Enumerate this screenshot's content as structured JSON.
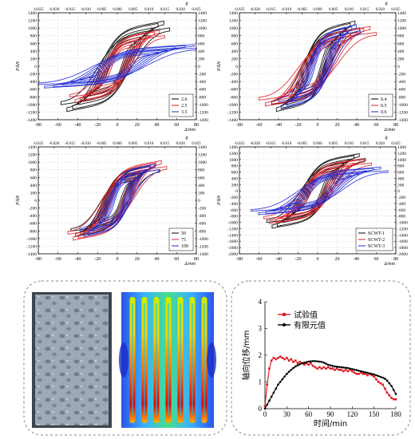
{
  "chart_data": [
    {
      "type": "line",
      "panel": "top-left",
      "xlabel": "Δ/mm",
      "ylabel": "P/kN",
      "top_axis_label": "θ",
      "xlim": [
        -80,
        80
      ],
      "ylim": [
        -1400,
        1400
      ],
      "xticks": [
        "-80",
        "-60",
        "-40",
        "-20",
        "0",
        "20",
        "40",
        "60",
        "80"
      ],
      "yticks": [
        "1400",
        "1200",
        "1000",
        "800",
        "600",
        "400",
        "200",
        "0",
        "-200",
        "-400",
        "-600",
        "-800",
        "-1000",
        "-1200",
        "-1400"
      ],
      "top_ticks": [
        "-0.025",
        "-0.020",
        "-0.015",
        "-0.010",
        "-0.005",
        "0.000",
        "0.005",
        "0.010",
        "0.015",
        "0.020",
        "0.025"
      ],
      "legend_position": "bottom-right",
      "grid": true,
      "series": [
        {
          "name": "2.0",
          "color": "#000000",
          "peak_load": 1250,
          "max_disp": 55
        },
        {
          "name": "2.5",
          "color": "#e11b22",
          "peak_load": 1000,
          "max_disp": 48
        },
        {
          "name": "3.3",
          "color": "#1f2ad6",
          "peak_load": 600,
          "max_disp": 85
        }
      ]
    },
    {
      "type": "line",
      "panel": "top-right",
      "xlabel": "Δ/mm",
      "ylabel": "P/kN",
      "top_axis_label": "θ",
      "xlim": [
        -80,
        80
      ],
      "ylim": [
        -1400,
        1400
      ],
      "xticks": [
        "-80",
        "-60",
        "-40",
        "-20",
        "0",
        "20",
        "40",
        "60",
        "80"
      ],
      "yticks": [
        "1400",
        "1200",
        "1000",
        "800",
        "600",
        "400",
        "200",
        "0",
        "-200",
        "-400",
        "-600",
        "-800",
        "-1000",
        "-1200",
        "-1400"
      ],
      "top_ticks": [
        "-0.025",
        "-0.020",
        "-0.015",
        "-0.010",
        "-0.005",
        "0.000",
        "0.005",
        "0.010",
        "0.015",
        "0.020",
        "0.025"
      ],
      "legend_position": "bottom-right",
      "grid": true,
      "series": [
        {
          "name": "0.4",
          "color": "#000000",
          "peak_load": 1250,
          "max_disp": 45
        },
        {
          "name": "0.5",
          "color": "#e11b22",
          "peak_load": 1100,
          "max_disp": 60
        },
        {
          "name": "0.6",
          "color": "#1f2ad6",
          "peak_load": 1150,
          "max_disp": 42
        }
      ]
    },
    {
      "type": "line",
      "panel": "bottom-left",
      "xlabel": "Δ/mm",
      "ylabel": "P/kN",
      "top_axis_label": "θ",
      "xlim": [
        -80,
        80
      ],
      "ylim": [
        -1400,
        1400
      ],
      "xticks": [
        "-80",
        "-60",
        "-40",
        "-20",
        "0",
        "20",
        "40",
        "60",
        "80"
      ],
      "yticks": [
        "1400",
        "1200",
        "1000",
        "800",
        "600",
        "400",
        "200",
        "0",
        "-200",
        "-400",
        "-600",
        "-800",
        "-1000",
        "-1200",
        "-1400"
      ],
      "top_ticks": [
        "-0.025",
        "-0.020",
        "-0.015",
        "-0.010",
        "-0.005",
        "0.000",
        "0.005",
        "0.010",
        "0.015",
        "0.020",
        "0.025"
      ],
      "legend_position": "bottom-right",
      "grid": true,
      "series": [
        {
          "name": "50",
          "color": "#000000",
          "peak_load": 1000,
          "max_disp": 45
        },
        {
          "name": "75",
          "color": "#e11b22",
          "peak_load": 1100,
          "max_disp": 50
        },
        {
          "name": "100",
          "color": "#1f2ad6",
          "peak_load": 1000,
          "max_disp": 40
        }
      ]
    },
    {
      "type": "line",
      "panel": "bottom-right",
      "xlabel": "Δ/mm",
      "ylabel": "P/kN",
      "top_axis_label": "θ",
      "xlim": [
        -80,
        80
      ],
      "ylim": [
        -2000,
        1400
      ],
      "xticks": [
        "-80",
        "-60",
        "-40",
        "-20",
        "0",
        "20",
        "40",
        "60",
        "80"
      ],
      "yticks_left": [
        "1400",
        "1200",
        "1000",
        "800",
        "600",
        "400",
        "200",
        "0",
        "-200",
        "-400",
        "-600",
        "-800",
        "-1000",
        "-1200",
        "-1400",
        "-1600",
        "-1800",
        "-2000"
      ],
      "yticks_right": [
        "1400",
        "1200",
        "1000",
        "800",
        "600",
        "400",
        "200",
        "0",
        "-200",
        "-400",
        "-600",
        "-800",
        "-1000",
        "-1200",
        "-1400",
        "-1600",
        "-1800",
        "-2000"
      ],
      "top_ticks": [
        "-0.025",
        "-0.020",
        "-0.015",
        "-0.010",
        "-0.005",
        "0.000",
        "0.005",
        "0.010",
        "0.015",
        "0.020",
        "0.025"
      ],
      "legend_position": "bottom-right",
      "grid": true,
      "series": [
        {
          "name": "SCWT-1",
          "color": "#000000",
          "peak_load": 1250,
          "max_disp": 50
        },
        {
          "name": "SCWT-2",
          "color": "#e11b22",
          "peak_load": 1100,
          "max_disp": 55
        },
        {
          "name": "SCWT-3",
          "color": "#1f2ad6",
          "peak_load": 800,
          "max_disp": 70
        }
      ]
    },
    {
      "type": "line",
      "panel": "bottom-right-inset",
      "xlabel": "时间/min",
      "ylabel": "轴向位移/mm",
      "xlim": [
        0,
        180
      ],
      "ylim": [
        0,
        4
      ],
      "xticks": [
        "0",
        "30",
        "60",
        "90",
        "120",
        "150",
        "180"
      ],
      "yticks": [
        "0",
        "1",
        "2",
        "3",
        "4"
      ],
      "legend_position": "top-center",
      "grid": false,
      "series": [
        {
          "name": "试验值",
          "color": "#e11b22",
          "x": [
            0,
            3,
            6,
            9,
            12,
            15,
            18,
            21,
            24,
            27,
            30,
            33,
            36,
            39,
            42,
            45,
            48,
            51,
            54,
            57,
            60,
            63,
            66,
            69,
            72,
            75,
            78,
            81,
            84,
            87,
            90,
            93,
            96,
            99,
            102,
            105,
            108,
            111,
            114,
            117,
            120,
            123,
            126,
            129,
            132,
            135,
            138,
            141,
            144,
            147,
            150,
            153,
            156,
            159,
            162,
            165,
            168,
            171,
            174,
            177,
            180
          ],
          "values": [
            0.1,
            0.9,
            1.5,
            1.8,
            1.9,
            1.85,
            1.9,
            1.95,
            1.9,
            1.85,
            1.9,
            1.8,
            1.85,
            1.75,
            1.8,
            1.7,
            1.75,
            1.7,
            1.65,
            1.7,
            1.65,
            1.7,
            1.6,
            1.55,
            1.5,
            1.55,
            1.5,
            1.55,
            1.5,
            1.55,
            1.5,
            1.5,
            1.45,
            1.5,
            1.45,
            1.45,
            1.4,
            1.45,
            1.4,
            1.45,
            1.4,
            1.35,
            1.3,
            1.3,
            1.35,
            1.3,
            1.3,
            1.25,
            1.3,
            1.25,
            1.2,
            1.1,
            1.0,
            0.95,
            0.9,
            0.75,
            0.6,
            0.5,
            0.4,
            0.35,
            0.35
          ]
        },
        {
          "name": "有限元值",
          "color": "#000000",
          "x": [
            0,
            3,
            6,
            9,
            12,
            15,
            18,
            21,
            24,
            27,
            30,
            33,
            36,
            39,
            42,
            45,
            48,
            51,
            54,
            57,
            60,
            63,
            66,
            69,
            72,
            75,
            78,
            81,
            84,
            87,
            90,
            93,
            96,
            99,
            102,
            105,
            108,
            111,
            114,
            117,
            120,
            123,
            126,
            129,
            132,
            135,
            138,
            141,
            144,
            147,
            150,
            153,
            156,
            159,
            162,
            165,
            168,
            171,
            174,
            177,
            180
          ],
          "values": [
            0.0,
            0.15,
            0.3,
            0.45,
            0.6,
            0.75,
            0.9,
            1.0,
            1.1,
            1.2,
            1.3,
            1.38,
            1.45,
            1.52,
            1.58,
            1.62,
            1.66,
            1.7,
            1.72,
            1.74,
            1.76,
            1.77,
            1.78,
            1.78,
            1.77,
            1.76,
            1.75,
            1.72,
            1.68,
            1.64,
            1.62,
            1.6,
            1.58,
            1.57,
            1.56,
            1.55,
            1.54,
            1.53,
            1.52,
            1.5,
            1.48,
            1.46,
            1.44,
            1.42,
            1.4,
            1.38,
            1.36,
            1.34,
            1.32,
            1.3,
            1.28,
            1.25,
            1.22,
            1.19,
            1.16,
            1.12,
            1.05,
            0.95,
            0.85,
            0.7,
            0.55
          ]
        }
      ]
    }
  ],
  "photos": {
    "specimen_photo": {
      "color": "#9aa7b6"
    },
    "fem_contour": {
      "colors": [
        "#1a3cd6",
        "#00a0ff",
        "#00e0a0",
        "#a0f000",
        "#ffe000",
        "#ff4000",
        "#d00000"
      ]
    }
  }
}
